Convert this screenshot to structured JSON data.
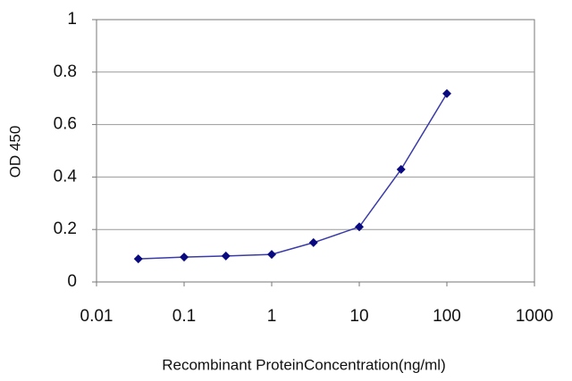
{
  "chart_data": {
    "type": "line",
    "x_label": "Recombinant ProteinConcentration(ng/ml)",
    "y_label": "OD 450",
    "x": [
      0.03,
      0.1,
      0.3,
      1,
      3,
      10,
      30,
      100
    ],
    "series": [
      {
        "color": "#3a3aa8",
        "marker_color": "#0a0a80",
        "values": [
          0.088,
          0.095,
          0.099,
          0.105,
          0.15,
          0.21,
          0.429,
          0.718
        ]
      }
    ],
    "xlim": [
      0.01,
      1000
    ],
    "xticks": [
      0.01,
      0.1,
      1,
      10,
      100,
      1000
    ],
    "log_x": true,
    "ylim": [
      0,
      1
    ],
    "yticks": [
      0,
      0.2,
      0.4,
      0.6,
      0.8,
      1
    ],
    "grid": true
  }
}
